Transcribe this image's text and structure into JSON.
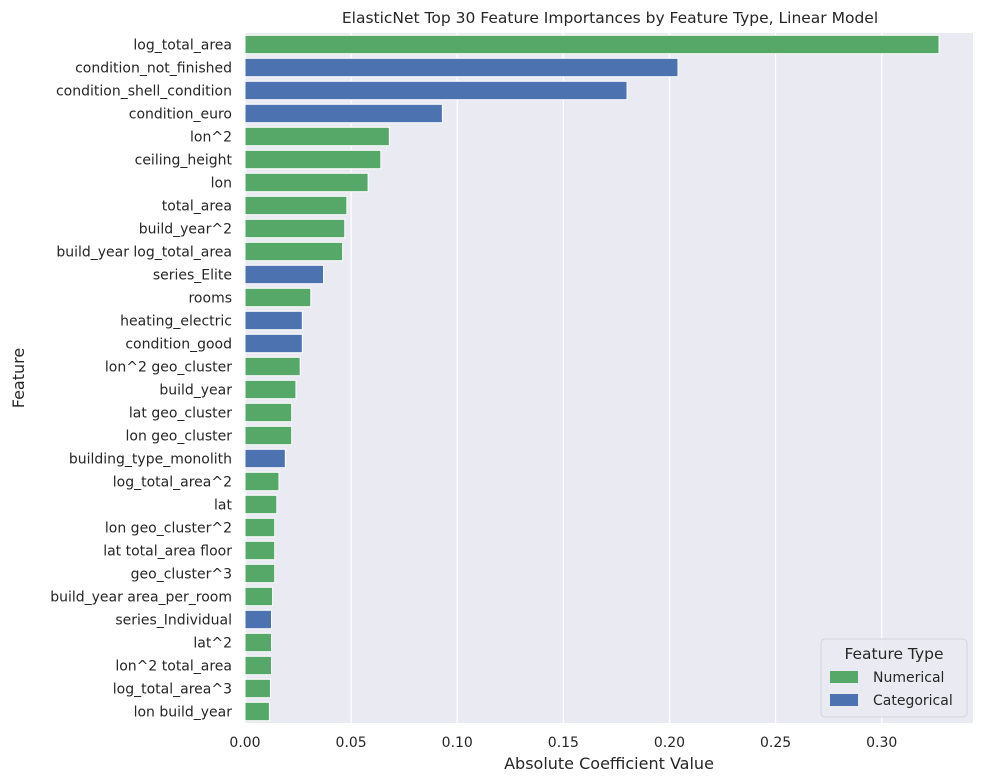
{
  "chart_data": {
    "type": "bar",
    "orientation": "horizontal",
    "title": "ElasticNet Top 30 Feature Importances by Feature Type, Linear Model",
    "xlabel": "Absolute Coefficient Value",
    "ylabel": "Feature",
    "xlim": [
      0,
      0.343
    ],
    "xticks": [
      0.0,
      0.05,
      0.1,
      0.15,
      0.2,
      0.25,
      0.3
    ],
    "xtick_labels": [
      "0.00",
      "0.05",
      "0.10",
      "0.15",
      "0.20",
      "0.25",
      "0.30"
    ],
    "grid": true,
    "background": "#eaeaf2",
    "grid_color": "#ffffff",
    "legend": {
      "title": "Feature Type",
      "placement": "lower-right",
      "entries": [
        {
          "name": "Numerical",
          "color": "#55a868"
        },
        {
          "name": "Categorical",
          "color": "#4c72b0"
        }
      ]
    },
    "bars": [
      {
        "feature": "log_total_area",
        "value": 0.327,
        "type": "Numerical"
      },
      {
        "feature": "condition_not_finished",
        "value": 0.204,
        "type": "Categorical"
      },
      {
        "feature": "condition_shell_condition",
        "value": 0.18,
        "type": "Categorical"
      },
      {
        "feature": "condition_euro",
        "value": 0.093,
        "type": "Categorical"
      },
      {
        "feature": "lon^2",
        "value": 0.068,
        "type": "Numerical"
      },
      {
        "feature": "ceiling_height",
        "value": 0.064,
        "type": "Numerical"
      },
      {
        "feature": "lon",
        "value": 0.058,
        "type": "Numerical"
      },
      {
        "feature": "total_area",
        "value": 0.048,
        "type": "Numerical"
      },
      {
        "feature": "build_year^2",
        "value": 0.047,
        "type": "Numerical"
      },
      {
        "feature": "build_year log_total_area",
        "value": 0.046,
        "type": "Numerical"
      },
      {
        "feature": "series_Elite",
        "value": 0.037,
        "type": "Categorical"
      },
      {
        "feature": "rooms",
        "value": 0.031,
        "type": "Numerical"
      },
      {
        "feature": "heating_electric",
        "value": 0.027,
        "type": "Categorical"
      },
      {
        "feature": "condition_good",
        "value": 0.027,
        "type": "Categorical"
      },
      {
        "feature": "lon^2 geo_cluster",
        "value": 0.026,
        "type": "Numerical"
      },
      {
        "feature": "build_year",
        "value": 0.024,
        "type": "Numerical"
      },
      {
        "feature": "lat geo_cluster",
        "value": 0.022,
        "type": "Numerical"
      },
      {
        "feature": "lon geo_cluster",
        "value": 0.022,
        "type": "Numerical"
      },
      {
        "feature": "building_type_monolith",
        "value": 0.019,
        "type": "Categorical"
      },
      {
        "feature": "log_total_area^2",
        "value": 0.016,
        "type": "Numerical"
      },
      {
        "feature": "lat",
        "value": 0.015,
        "type": "Numerical"
      },
      {
        "feature": "lon geo_cluster^2",
        "value": 0.014,
        "type": "Numerical"
      },
      {
        "feature": "lat total_area floor",
        "value": 0.014,
        "type": "Numerical"
      },
      {
        "feature": "geo_cluster^3",
        "value": 0.014,
        "type": "Numerical"
      },
      {
        "feature": "build_year area_per_room",
        "value": 0.013,
        "type": "Numerical"
      },
      {
        "feature": "series_Individual",
        "value": 0.0125,
        "type": "Categorical"
      },
      {
        "feature": "lat^2",
        "value": 0.0125,
        "type": "Numerical"
      },
      {
        "feature": "lon^2 total_area",
        "value": 0.0125,
        "type": "Numerical"
      },
      {
        "feature": "log_total_area^3",
        "value": 0.012,
        "type": "Numerical"
      },
      {
        "feature": "lon build_year",
        "value": 0.0115,
        "type": "Numerical"
      }
    ]
  }
}
